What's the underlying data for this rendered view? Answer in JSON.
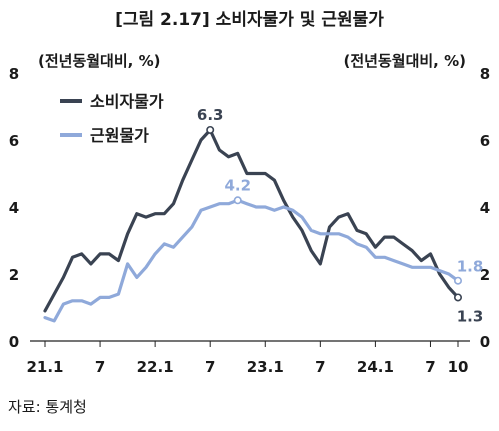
{
  "title": "[그림 2.17] 소비자물가 및 근원물가",
  "source": "자료: 통계청",
  "chart_data": {
    "type": "line",
    "unit_left": "(전년동월대비, %)",
    "unit_right": "(전년동월대비, %)",
    "ylim": [
      0,
      8
    ],
    "yticks": [
      0,
      2,
      4,
      6,
      8
    ],
    "x": [
      "21.1",
      "21.2",
      "21.3",
      "21.4",
      "21.5",
      "21.6",
      "21.7",
      "21.8",
      "21.9",
      "21.10",
      "21.11",
      "21.12",
      "22.1",
      "22.2",
      "22.3",
      "22.4",
      "22.5",
      "22.6",
      "22.7",
      "22.8",
      "22.9",
      "22.10",
      "22.11",
      "22.12",
      "23.1",
      "23.2",
      "23.3",
      "23.4",
      "23.5",
      "23.6",
      "23.7",
      "23.8",
      "23.9",
      "23.10",
      "23.11",
      "23.12",
      "24.1",
      "24.2",
      "24.3",
      "24.4",
      "24.5",
      "24.6",
      "24.7",
      "24.8",
      "24.9",
      "24.10"
    ],
    "xtick_labels": [
      {
        "index": 0,
        "label": "21.1"
      },
      {
        "index": 6,
        "label": "7"
      },
      {
        "index": 12,
        "label": "22.1"
      },
      {
        "index": 18,
        "label": "7"
      },
      {
        "index": 24,
        "label": "23.1"
      },
      {
        "index": 30,
        "label": "7"
      },
      {
        "index": 36,
        "label": "24.1"
      },
      {
        "index": 42,
        "label": "7"
      },
      {
        "index": 45,
        "label": "10"
      }
    ],
    "legend_position": "top-left",
    "series": [
      {
        "name": "소비자물가",
        "color": "#3a4352",
        "values": [
          0.9,
          1.4,
          1.9,
          2.5,
          2.6,
          2.3,
          2.6,
          2.6,
          2.4,
          3.2,
          3.8,
          3.7,
          3.8,
          3.8,
          4.1,
          4.8,
          5.4,
          6.0,
          6.3,
          5.7,
          5.5,
          5.6,
          5.0,
          5.0,
          5.0,
          4.8,
          4.2,
          3.7,
          3.3,
          2.7,
          2.3,
          3.4,
          3.7,
          3.8,
          3.3,
          3.2,
          2.8,
          3.1,
          3.1,
          2.9,
          2.7,
          2.4,
          2.6,
          2.0,
          1.6,
          1.3
        ]
      },
      {
        "name": "근원물가",
        "color": "#8fa9da",
        "values": [
          0.7,
          0.6,
          1.1,
          1.2,
          1.2,
          1.1,
          1.3,
          1.3,
          1.4,
          2.3,
          1.9,
          2.2,
          2.6,
          2.9,
          2.8,
          3.1,
          3.4,
          3.9,
          4.0,
          4.1,
          4.1,
          4.2,
          4.1,
          4.0,
          4.0,
          3.9,
          4.0,
          3.9,
          3.7,
          3.3,
          3.2,
          3.2,
          3.2,
          3.1,
          2.9,
          2.8,
          2.5,
          2.5,
          2.4,
          2.3,
          2.2,
          2.2,
          2.2,
          2.1,
          2.0,
          1.8
        ]
      }
    ],
    "annotations": [
      {
        "series": 0,
        "index": 18,
        "label": "6.3"
      },
      {
        "series": 1,
        "index": 21,
        "label": "4.2"
      },
      {
        "series": 1,
        "index": 45,
        "label": "1.8"
      },
      {
        "series": 0,
        "index": 45,
        "label": "1.3"
      }
    ]
  }
}
